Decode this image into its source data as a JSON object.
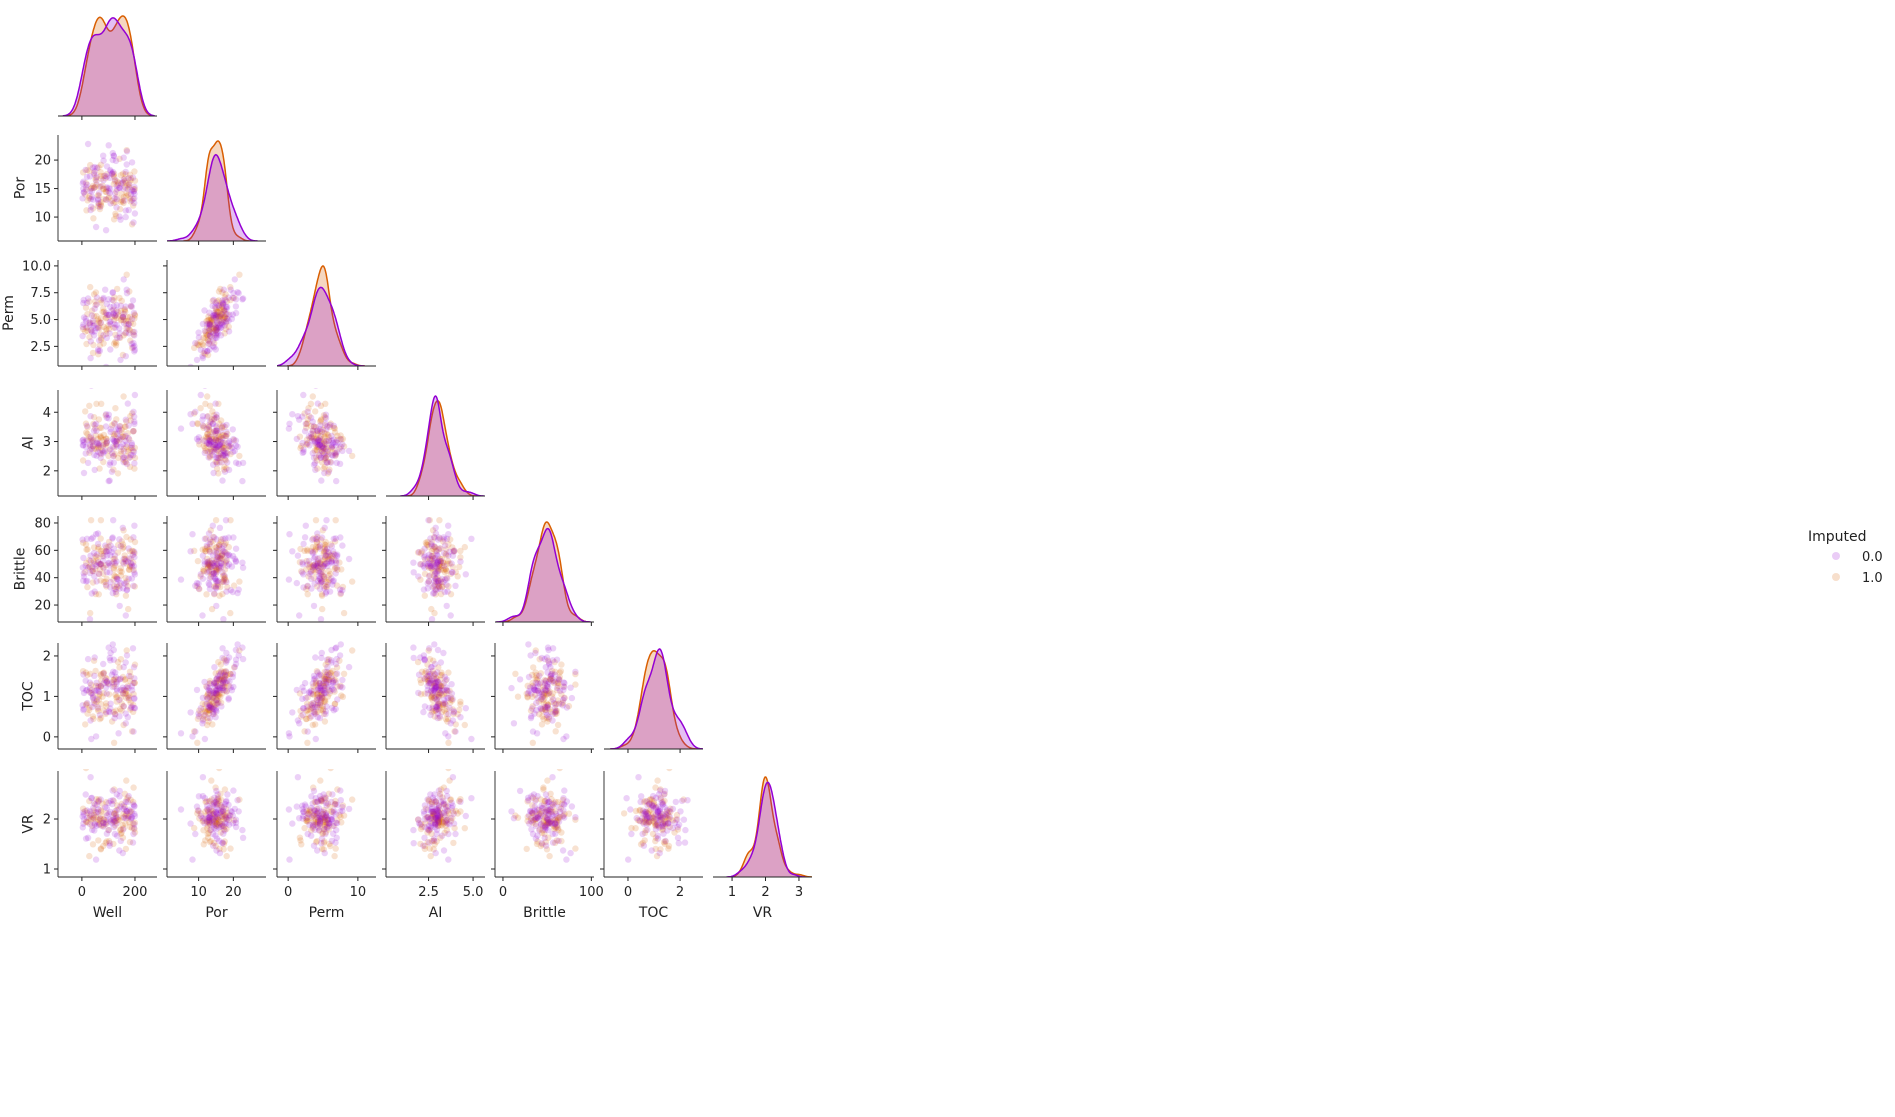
{
  "chart_data": {
    "type": "pairplot",
    "layout": "corner (lower triangle), scatter off-diagonal, KDE on diagonal",
    "variables": [
      "Well",
      "Por",
      "Perm",
      "AI",
      "Brittle",
      "TOC",
      "VR"
    ],
    "hue": {
      "title": "Imputed",
      "levels": [
        {
          "label": "0.0",
          "color": "#9400d3"
        },
        {
          "label": "1.0",
          "color": "#d95f02"
        }
      ],
      "legend_position": "right"
    },
    "axes": {
      "Well": {
        "lim": [
          -90,
          283
        ],
        "ticks": [
          0,
          200
        ],
        "tick_labels": [
          "0",
          "200"
        ]
      },
      "Por": {
        "lim": [
          0.9,
          29.4
        ],
        "ylim": [
          5.8,
          24.4
        ],
        "ticks": [
          10,
          20
        ],
        "tick_labels": [
          "10",
          "20"
        ],
        "yticks": [
          10,
          15,
          20
        ],
        "ytick_labels": [
          "10",
          "15",
          "20"
        ]
      },
      "Perm": {
        "lim": [
          -1.6,
          12.6
        ],
        "ylim": [
          0.67,
          10.55
        ],
        "ticks": [
          0,
          10
        ],
        "tick_labels": [
          "0",
          "10"
        ],
        "yticks": [
          2.5,
          5.0,
          7.5,
          10.0
        ],
        "ytick_labels": [
          "2.5",
          "5.0",
          "7.5",
          "10.0"
        ]
      },
      "AI": {
        "lim": [
          0.11,
          5.67
        ],
        "ylim": [
          1.14,
          4.76
        ],
        "ticks": [
          2.5,
          5.0
        ],
        "tick_labels": [
          "2.5",
          "5.0"
        ],
        "yticks": [
          2,
          3,
          4
        ],
        "ytick_labels": [
          "2",
          "3",
          "4"
        ]
      },
      "Brittle": {
        "lim": [
          -9,
          103
        ],
        "ylim": [
          7.6,
          85.1
        ],
        "ticks": [
          0,
          100
        ],
        "tick_labels": [
          "0",
          "100"
        ],
        "yticks": [
          20,
          40,
          60,
          80
        ],
        "ytick_labels": [
          "20",
          "40",
          "60",
          "80"
        ]
      },
      "TOC": {
        "lim": [
          -0.92,
          2.88
        ],
        "ylim": [
          -0.3,
          2.32
        ],
        "ticks": [
          0,
          2
        ],
        "tick_labels": [
          "0",
          "2"
        ],
        "yticks": [
          0,
          1,
          2
        ],
        "ytick_labels": [
          "0",
          "1",
          "2"
        ]
      },
      "VR": {
        "lim": [
          0.43,
          3.39
        ],
        "ylim": [
          0.84,
          2.96
        ],
        "ticks": [
          1,
          2,
          3
        ],
        "tick_labels": [
          "1",
          "2",
          "3"
        ],
        "yticks": [
          1,
          2
        ],
        "ytick_labels": [
          "1",
          "2"
        ]
      }
    },
    "distribution_estimates": {
      "n_per_level": 100,
      "Well": {
        "min": 0,
        "max": 200
      },
      "Por": {
        "mean": 15,
        "sd": 3
      },
      "Perm": {
        "mean": 4.5,
        "sd": 1.7
      },
      "AI": {
        "mean": 3.0,
        "sd": 0.6
      },
      "Brittle": {
        "mean": 50,
        "sd": 14
      },
      "TOC": {
        "mean": 1.1,
        "sd": 0.5
      },
      "VR": {
        "mean": 2.0,
        "sd": 0.3
      },
      "correlations": {
        "Por-Perm": 0.75,
        "Por-AI": -0.45,
        "Por-TOC": 0.7,
        "AI-TOC": -0.5,
        "AI-VR": 0.4
      }
    },
    "grid": false
  }
}
